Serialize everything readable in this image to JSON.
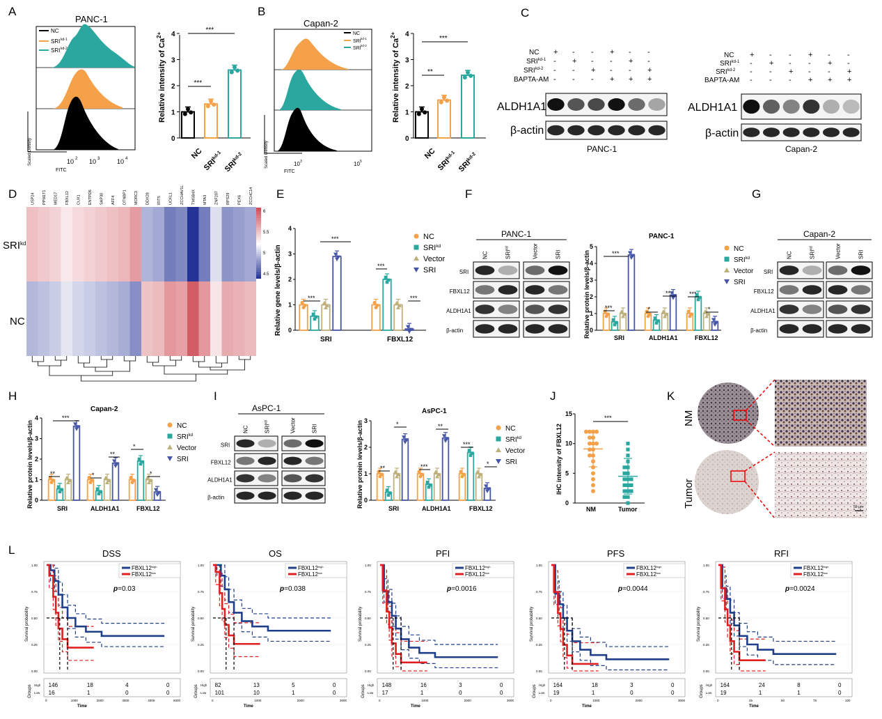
{
  "panel_letters": [
    "A",
    "B",
    "C",
    "D",
    "E",
    "F",
    "G",
    "H",
    "I",
    "J",
    "K",
    "L"
  ],
  "a": {
    "hist_title": "PANC-1",
    "legend": [
      "NC",
      "SRI",
      "kd-1",
      "SRI",
      "kd-2"
    ],
    "xlabel": "FITC",
    "ylabel": "Scaled Density",
    "ticks": [
      "10",
      "2",
      "10",
      "3",
      "10",
      "4"
    ],
    "bar": {
      "ylabel": "Relative intensity of Ca",
      "ylabel_sup": "2+",
      "yticks": [
        "0",
        "1",
        "2",
        "3",
        "4"
      ],
      "cats": [
        "NC",
        "SRI",
        "kd-1",
        "SRI",
        "kd-2"
      ],
      "values": [
        1.0,
        1.3,
        2.6
      ],
      "sig": [
        "***",
        "***"
      ],
      "colors": [
        "#000000",
        "#f5a14a",
        "#2aa8a0"
      ]
    }
  },
  "b": {
    "hist_title": "Capan-2",
    "legend": [
      "NC",
      "SRI",
      "kd-1",
      "SRI",
      "kd-2"
    ],
    "xlabel": "FITC",
    "ylabel": "Scaled Density",
    "ticks": [
      "10",
      "3",
      "10",
      "5"
    ],
    "bar": {
      "ylabel": "Relative intensity of Ca",
      "ylabel_sup": "2+",
      "yticks": [
        "0",
        "1",
        "2",
        "3",
        "4"
      ],
      "cats": [
        "NC",
        "SRI",
        "kd-1",
        "SRI",
        "kd-2"
      ],
      "values": [
        1.0,
        1.45,
        2.4
      ],
      "sig": [
        "**",
        "***"
      ],
      "colors": [
        "#000000",
        "#f5a14a",
        "#2aa8a0"
      ]
    }
  },
  "c": {
    "rows": [
      "NC",
      "SRI",
      "kd-1",
      "SRI",
      "kd-2",
      "BAPTA-AM"
    ],
    "signs": [
      [
        "+",
        "-",
        "-",
        "+",
        "-",
        "-"
      ],
      [
        "-",
        "+",
        "-",
        "-",
        "+",
        "-"
      ],
      [
        "-",
        "-",
        "+",
        "-",
        "-",
        "+"
      ],
      [
        "-",
        "-",
        "-",
        "+",
        "+",
        "+"
      ]
    ],
    "bands": [
      "ALDH1A1",
      "β-actin"
    ],
    "cells": [
      "PANC-1",
      "Capan-2"
    ]
  },
  "d": {
    "genes": [
      "USP24",
      "PPM1T1",
      "MED17",
      "FBXL12",
      "CUX1",
      "ENTPD6",
      "SAP30",
      "AFF4",
      "DTNBP1",
      "MORC3",
      "DDX28",
      "IFIT5",
      "UCKL1",
      "ZCCHAV1L",
      "TMSB4X",
      "MTA3",
      "ZNF207",
      "RPS29",
      "PEX6",
      "ZCCHC14"
    ],
    "rows": [
      "SRI",
      "kd",
      "NC"
    ],
    "scale": [
      "6",
      "5.5",
      "5",
      "4.5"
    ]
  },
  "e": {
    "ylabel": "Relative gene levels/β-actin",
    "yticks": [
      "0",
      "1",
      "2",
      "3",
      "4"
    ],
    "groups": [
      "SRI",
      "FBXL12"
    ],
    "legend": [
      "NC",
      "SRI",
      "kd",
      "Vector",
      "SRI"
    ],
    "series_colors": [
      "#f5a14a",
      "#2aa8a0",
      "#bdb07a",
      "#4555a8"
    ],
    "values": [
      [
        1.0,
        0.55,
        1.0,
        2.9
      ],
      [
        1.0,
        2.0,
        1.0,
        0.05
      ]
    ],
    "sig": [
      "***",
      "***",
      "***",
      "***"
    ]
  },
  "f": {
    "blot_title": "PANC-1",
    "lanes": [
      "NC",
      "SRI",
      "kd",
      "Vector",
      "SRI"
    ],
    "bands": [
      "SRI",
      "FBXL12",
      "ALDH1A1",
      "β-actin"
    ],
    "bar": {
      "title": "PANC-1",
      "ylabel": "Relative protein levels/β-actin",
      "yticks": [
        "0",
        "1",
        "2",
        "3",
        "4",
        "5"
      ],
      "groups": [
        "SRI",
        "ALDH1A1",
        "FBXL12"
      ],
      "legend": [
        "NC",
        "SRI",
        "kd",
        "Vector",
        "SRI"
      ],
      "values": [
        [
          1.0,
          0.5,
          1.0,
          4.5
        ],
        [
          1.0,
          0.6,
          1.0,
          2.1
        ],
        [
          1.0,
          2.0,
          1.0,
          0.5
        ]
      ],
      "sig": [
        "***",
        "***",
        "*",
        "**",
        "***",
        "*"
      ]
    }
  },
  "g": {
    "blot_title": "Capan-2",
    "lanes": [
      "NC",
      "SRI",
      "kd",
      "Vector",
      "SRI"
    ],
    "bands": [
      "SRI",
      "FBXL12",
      "ALDH1A1",
      "β-actin"
    ]
  },
  "h": {
    "title": "Capan-2",
    "ylabel": "Relative protein levels/β-actin",
    "yticks": [
      "0",
      "1",
      "2",
      "3",
      "4"
    ],
    "groups": [
      "SRI",
      "ALDH1A1",
      "FBXL12"
    ],
    "legend": [
      "NC",
      "SRI",
      "kd",
      "Vector",
      "SRI"
    ],
    "values": [
      [
        1.0,
        0.55,
        1.0,
        3.6
      ],
      [
        1.0,
        0.45,
        1.0,
        1.8
      ],
      [
        1.0,
        1.9,
        1.0,
        0.4
      ]
    ],
    "sig": [
      "**",
      "***",
      "*",
      "**",
      "*",
      "*"
    ]
  },
  "i": {
    "blot_title": "AsPC-1",
    "lanes": [
      "NC",
      "SRI",
      "kd",
      "Vector",
      "SRI"
    ],
    "bands": [
      "SRI",
      "FBXL12",
      "ALDH1A1",
      "β-actin"
    ],
    "bar": {
      "title": "AsPC-1",
      "ylabel": "Relative protein levels/β-actin",
      "yticks": [
        "0",
        "1",
        "2",
        "3"
      ],
      "groups": [
        "SRI",
        "ALDH1A1",
        "FBXL12"
      ],
      "legend": [
        "NC",
        "SRI",
        "kd",
        "Vector",
        "SRI"
      ],
      "values": [
        [
          1.0,
          0.3,
          1.0,
          2.3
        ],
        [
          1.0,
          0.6,
          1.0,
          2.35
        ],
        [
          1.0,
          1.8,
          1.0,
          0.45
        ]
      ],
      "sig": [
        "**",
        "*",
        "***",
        "**",
        "***",
        "*"
      ]
    }
  },
  "j": {
    "ylabel": "IHC intensity of FBXL12",
    "yticks": [
      "0",
      "5",
      "10",
      "15"
    ],
    "cats": [
      "NM",
      "Tumor"
    ],
    "means": [
      9.1,
      4.5
    ],
    "sig": "***"
  },
  "k": {
    "labels": [
      "NM",
      "Tumor"
    ],
    "scale": "50 μm"
  },
  "l": {
    "legend": [
      "FBXL12",
      "high",
      "FBXL12",
      "low"
    ],
    "ylabel": "Survival probability",
    "xlabel": "Time",
    "groups_label": "Groups",
    "risk_rows": [
      "High",
      "Low"
    ],
    "yticks": [
      "0.00",
      "0.25",
      "0.50",
      "0.75",
      "1.00"
    ],
    "plots": [
      {
        "title": "DSS",
        "p": "=0.03",
        "xticks": [
          "0",
          "1000",
          "2000",
          "3000",
          "4000",
          "5000"
        ],
        "high": [
          "146",
          "18",
          "4",
          "0"
        ],
        "low": [
          "16",
          "1",
          "0",
          "0"
        ]
      },
      {
        "title": "OS",
        "p": "=0.038",
        "xticks": [
          "0",
          "1000",
          "2000",
          "3000"
        ],
        "high": [
          "82",
          "13",
          "5",
          "0"
        ],
        "low": [
          "101",
          "10",
          "1",
          "0"
        ]
      },
      {
        "title": "PFI",
        "p": "=0.0016",
        "xticks": [
          "0",
          "1000",
          "2000",
          "3000"
        ],
        "high": [
          "148",
          "16",
          "3",
          "0"
        ],
        "low": [
          "17",
          "1",
          "0",
          "0"
        ]
      },
      {
        "title": "PFS",
        "p": "=0.0044",
        "xticks": [
          "0",
          "1000",
          "2000",
          "3000"
        ],
        "high": [
          "164",
          "18",
          "3",
          "0"
        ],
        "low": [
          "19",
          "1",
          "0",
          "0"
        ]
      },
      {
        "title": "RFI",
        "p": "=0.0024",
        "xticks": [
          "0",
          "25",
          "50",
          "75",
          "100"
        ],
        "high": [
          "164",
          "24",
          "8",
          "0"
        ],
        "low": [
          "19",
          "1",
          "1",
          "0"
        ]
      }
    ]
  }
}
